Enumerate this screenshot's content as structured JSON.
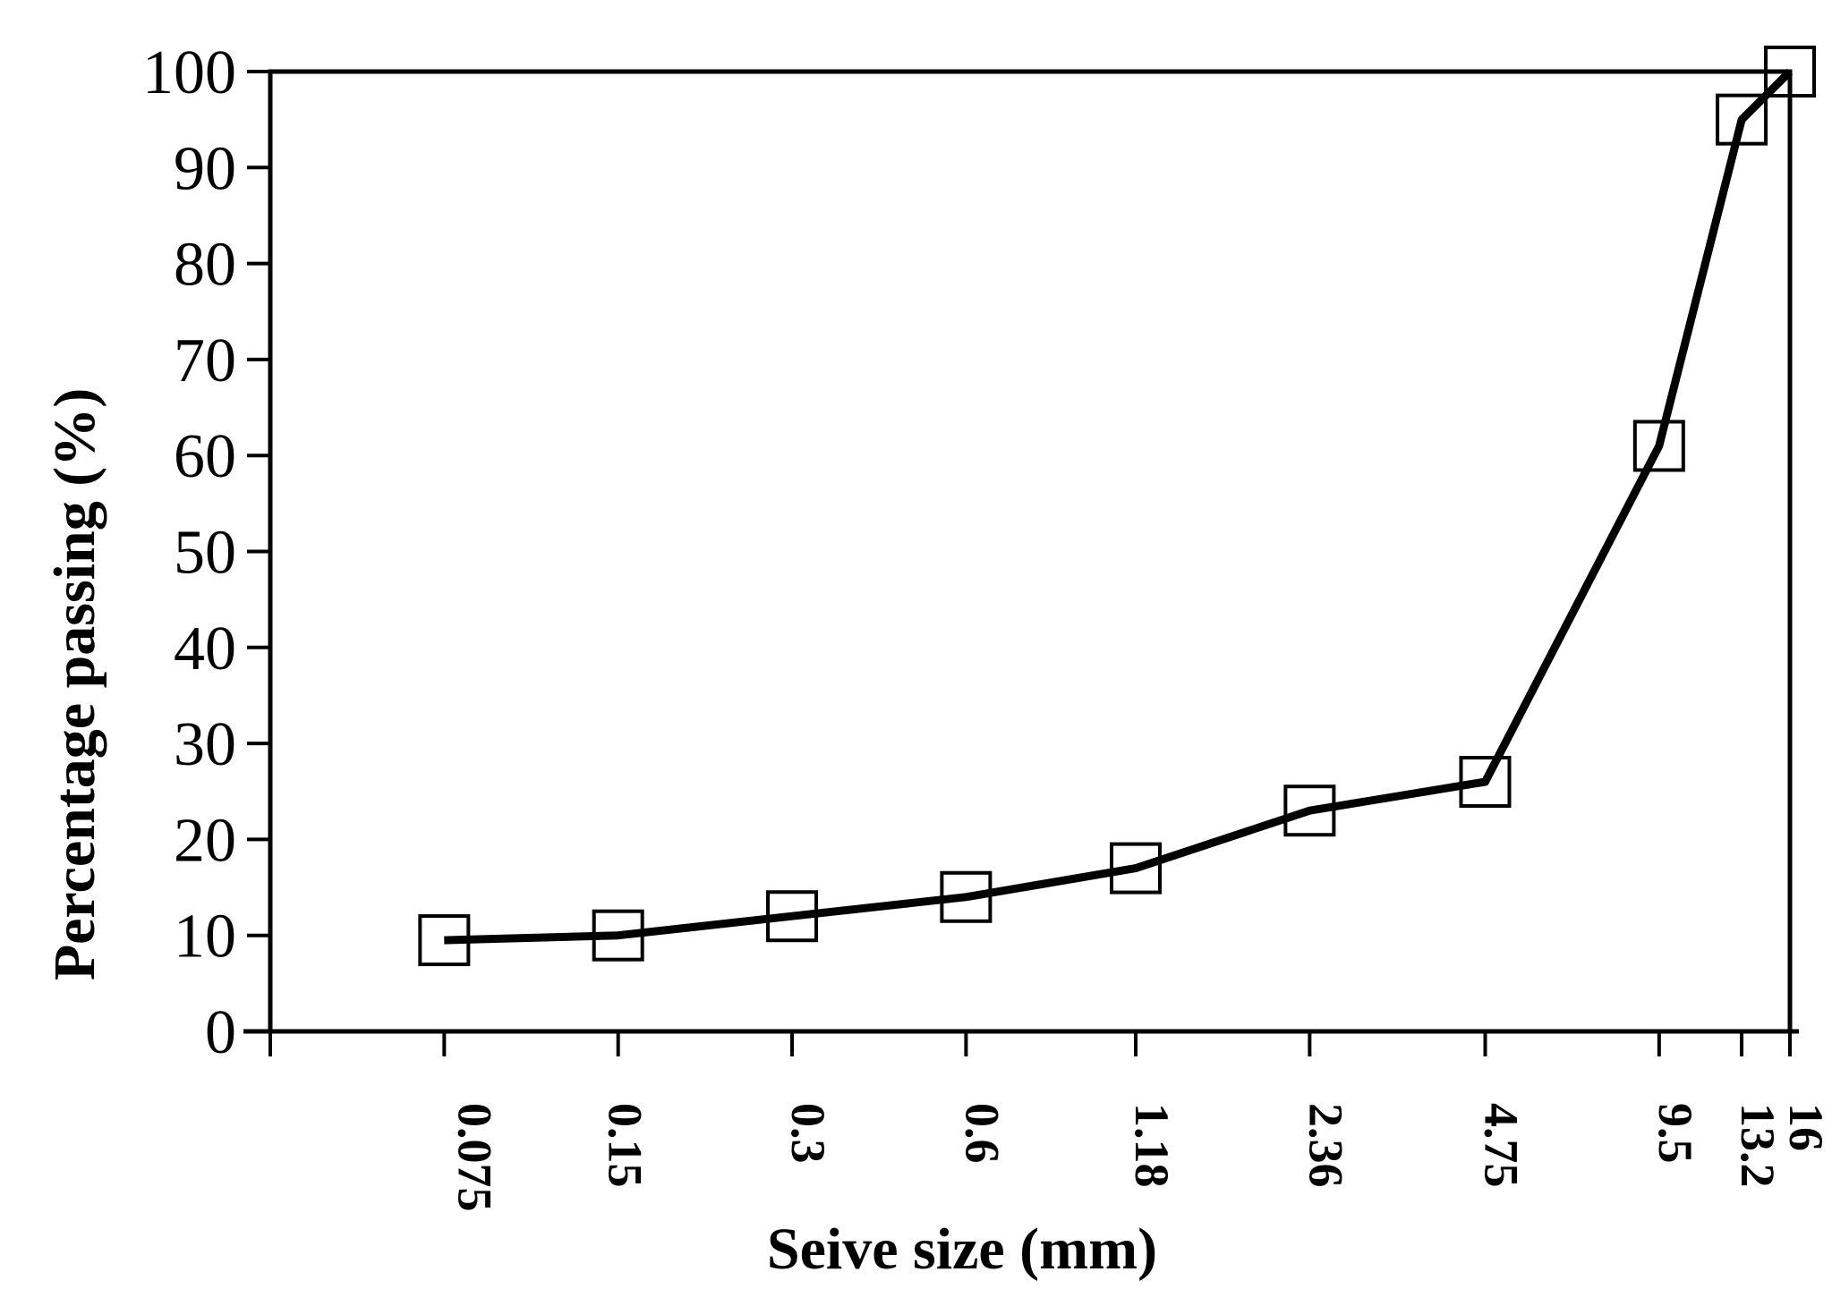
{
  "chart_data": {
    "type": "line",
    "title": "",
    "xlabel": "Seive size (mm)",
    "ylabel": "Percentage passing (%)",
    "x_scale": "log",
    "xlim": [
      0.0375,
      16
    ],
    "ylim": [
      0,
      100
    ],
    "y_ticks": [
      "0",
      "10",
      "20",
      "30",
      "40",
      "50",
      "60",
      "70",
      "80",
      "90",
      "100"
    ],
    "x_ticks": [
      "0.075",
      "0.15",
      "0.3",
      "0.6",
      "1.18",
      "2.36",
      "4.75",
      "9.5",
      "13.2",
      "16"
    ],
    "grid": false,
    "legend": "none",
    "marker": "open-square",
    "line_color": "#000000",
    "series": [
      {
        "x": [
          0.075,
          0.15,
          0.3,
          0.6,
          1.18,
          2.36,
          4.75,
          9.5,
          13.2,
          16
        ],
        "values": [
          9.5,
          10,
          12,
          14,
          17,
          23,
          26,
          61,
          95,
          100
        ]
      }
    ]
  }
}
